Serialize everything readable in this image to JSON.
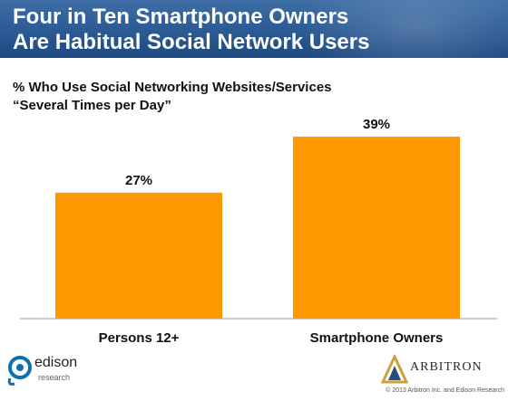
{
  "header": {
    "title_line1": "Four in Ten Smartphone Owners",
    "title_line2": "Are Habitual Social Network Users"
  },
  "chart_data": {
    "type": "bar",
    "title": "% Who Use Social Networking Websites/Services",
    "subtitle": "“Several Times per Day”",
    "categories": [
      "Persons 12+",
      "Smartphone Owners"
    ],
    "values": [
      27,
      39
    ],
    "data_labels": [
      "27%",
      "39%"
    ],
    "ylim": [
      0,
      45
    ],
    "grid": false,
    "bar_color": "#ff9900"
  },
  "footer": {
    "left_logo": "edison",
    "left_logo_sub": "research",
    "right_logo": "ARBITRON",
    "copyright": "© 2013 Arbitron Inc. and Edison Research"
  }
}
